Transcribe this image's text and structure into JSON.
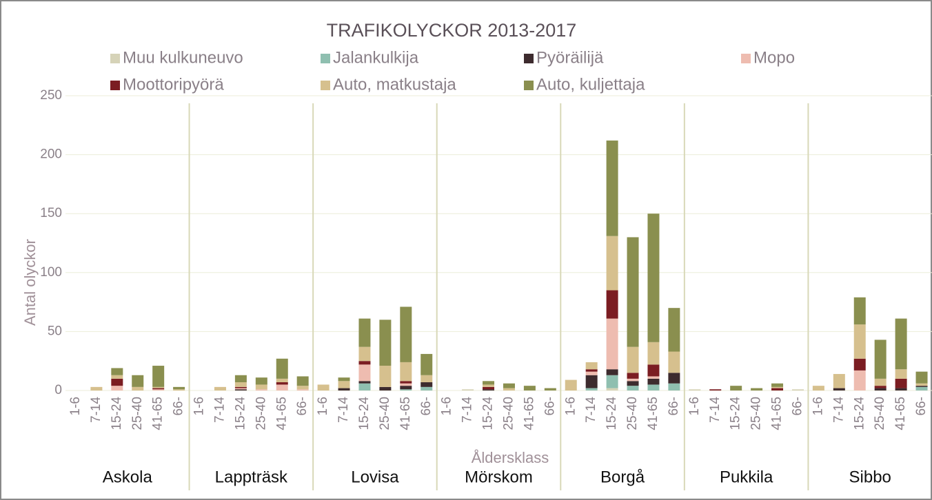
{
  "chart_data": {
    "type": "stacked-bar",
    "title": "TRAFIKOLYCKOR 2013-2017",
    "y_label": "Antal olyckor",
    "x_label": "Åldersklass",
    "groups": [
      "Askola",
      "Lappträsk",
      "Lovisa",
      "Mörskom",
      "Borgå",
      "Pukkila",
      "Sibbo"
    ],
    "categories": [
      "1-6",
      "7-14",
      "15-24",
      "25-40",
      "41-65",
      "66-",
      "1-6",
      "7-14",
      "15-24",
      "25-40",
      "41-65",
      "66-",
      "1-6",
      "7-14",
      "15-24",
      "25-40",
      "41-65",
      "66-",
      "1-6",
      "7-14",
      "15-24",
      "25-40",
      "41-65",
      "66-",
      "1-6",
      "7-14",
      "15-24",
      "25-40",
      "41-65",
      "66-",
      "1-6",
      "7-14",
      "15-24",
      "25-40",
      "41-65",
      "66-",
      "1-6",
      "7-14",
      "15-24",
      "25-40",
      "41-65",
      "66-"
    ],
    "series": [
      {
        "name": "Muu kulkuneuvo",
        "color": "#d6d3b8",
        "values": [
          0,
          0,
          0,
          0,
          0,
          0,
          0,
          0,
          0,
          0,
          0,
          0,
          0,
          0,
          0,
          0,
          0,
          0,
          0,
          1,
          0,
          0,
          0,
          0,
          0,
          0,
          2,
          0,
          0,
          0,
          1,
          0,
          0,
          0,
          0,
          1,
          0,
          0,
          0,
          0,
          0,
          0
        ]
      },
      {
        "name": "Jalankulkija",
        "color": "#8fbfb0",
        "values": [
          0,
          0,
          0,
          0,
          0,
          0,
          0,
          0,
          0,
          0,
          0,
          0,
          0,
          0,
          6,
          0,
          1,
          3,
          0,
          0,
          0,
          0,
          0,
          0,
          0,
          2,
          11,
          4,
          5,
          6,
          0,
          0,
          0,
          0,
          0,
          0,
          0,
          0,
          0,
          0,
          0,
          3
        ]
      },
      {
        "name": "Pyöräilijä",
        "color": "#3d2b2e",
        "values": [
          0,
          0,
          0,
          0,
          0,
          0,
          0,
          0,
          1,
          0,
          0,
          0,
          0,
          2,
          2,
          3,
          3,
          4,
          0,
          0,
          1,
          0,
          0,
          0,
          0,
          11,
          5,
          4,
          5,
          9,
          0,
          0,
          0,
          0,
          0,
          0,
          0,
          2,
          0,
          2,
          2,
          1
        ]
      },
      {
        "name": "Mopo",
        "color": "#eebcb0",
        "values": [
          0,
          0,
          4,
          0,
          1,
          0,
          0,
          0,
          1,
          1,
          5,
          1,
          0,
          0,
          14,
          0,
          2,
          0,
          0,
          0,
          0,
          0,
          0,
          0,
          0,
          3,
          43,
          2,
          2,
          0,
          0,
          0,
          0,
          0,
          0,
          0,
          0,
          0,
          17,
          0,
          0,
          0
        ]
      },
      {
        "name": "Moottoripyörä",
        "color": "#7b1d22",
        "values": [
          0,
          0,
          6,
          0,
          1,
          0,
          0,
          0,
          1,
          0,
          2,
          0,
          0,
          0,
          3,
          0,
          2,
          0,
          0,
          0,
          2,
          0,
          0,
          0,
          0,
          2,
          24,
          5,
          10,
          0,
          0,
          1,
          0,
          0,
          2,
          0,
          0,
          0,
          10,
          2,
          8,
          0
        ]
      },
      {
        "name": "Auto, matkustaja",
        "color": "#d6c08e",
        "values": [
          0,
          3,
          3,
          3,
          1,
          1,
          0,
          3,
          4,
          4,
          3,
          3,
          5,
          6,
          12,
          18,
          16,
          6,
          0,
          0,
          2,
          2,
          0,
          0,
          9,
          6,
          46,
          22,
          19,
          18,
          0,
          0,
          0,
          0,
          1,
          0,
          4,
          12,
          29,
          6,
          8,
          2
        ]
      },
      {
        "name": "Auto, kuljettaja",
        "color": "#8a8f4f",
        "values": [
          0,
          0,
          6,
          10,
          18,
          2,
          0,
          0,
          6,
          6,
          17,
          8,
          0,
          3,
          24,
          39,
          47,
          18,
          0,
          0,
          3,
          4,
          4,
          2,
          0,
          0,
          81,
          93,
          109,
          37,
          0,
          0,
          4,
          2,
          3,
          0,
          0,
          0,
          23,
          33,
          43,
          10
        ]
      }
    ],
    "ylim": [
      0,
      250
    ],
    "yticks": [
      0,
      50,
      100,
      150,
      200,
      250
    ],
    "grid": true
  }
}
